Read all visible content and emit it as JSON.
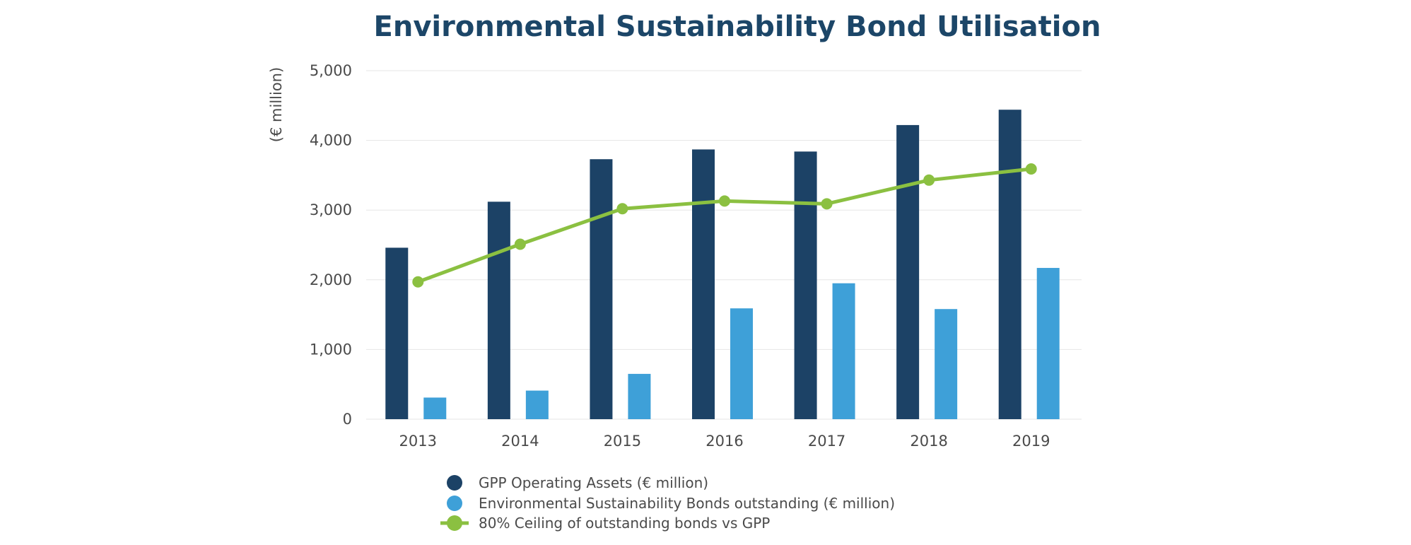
{
  "chart_data": {
    "type": "bar",
    "title": "Environmental Sustainability Bond Utilisation",
    "xlabel": "",
    "ylabel": "(€ million)",
    "ylim": [
      0,
      5000
    ],
    "yticks": [
      "0",
      "1,000",
      "2,000",
      "3,000",
      "4,000",
      "5,000"
    ],
    "categories": [
      "2013",
      "2014",
      "2015",
      "2016",
      "2017",
      "2018",
      "2019"
    ],
    "grid": true,
    "legend_position": "bottom",
    "series": [
      {
        "name": "GPP Operating Assets (€ million)",
        "kind": "bar",
        "color": "#1c4266",
        "values": [
          2460,
          3120,
          3730,
          3870,
          3840,
          4220,
          4440
        ]
      },
      {
        "name": "Environmental Sustainability Bonds outstanding (€ million)",
        "kind": "bar",
        "color": "#3ea0d8",
        "values": [
          310,
          410,
          650,
          1590,
          1950,
          1580,
          2170
        ]
      },
      {
        "name": "80% Ceiling of outstanding bonds vs GPP",
        "kind": "line",
        "color": "#8bc041",
        "values": [
          1970,
          2510,
          3020,
          3130,
          3090,
          3430,
          3590
        ]
      }
    ]
  }
}
